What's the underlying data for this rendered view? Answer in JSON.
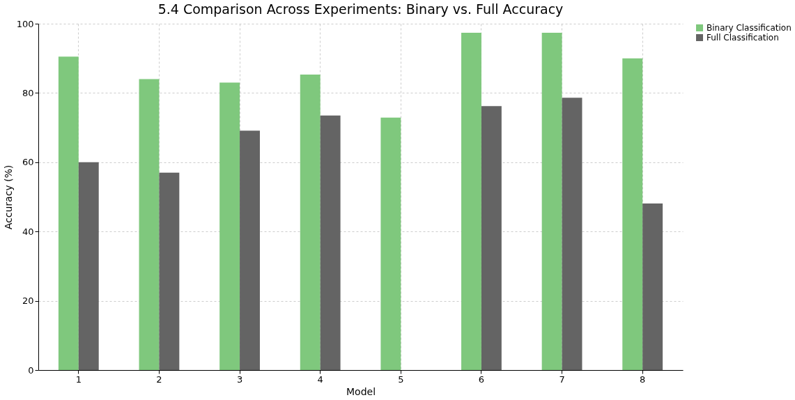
{
  "chart_data": {
    "type": "bar",
    "title": "5.4 Comparison Across Experiments: Binary vs. Full Accuracy",
    "xlabel": "Model",
    "ylabel": "Accuracy (%)",
    "categories": [
      "1",
      "2",
      "3",
      "4",
      "5",
      "6",
      "7",
      "8"
    ],
    "series": [
      {
        "name": "Binary Classification",
        "color": "#7fc87d",
        "values": [
          90.5,
          84.0,
          83.0,
          85.3,
          72.9,
          97.4,
          97.4,
          90
        ]
      },
      {
        "name": "Full Classification",
        "color": "#646464",
        "values": [
          60.0,
          57.0,
          69.1,
          73.5,
          null,
          76.2,
          78.6,
          48.1
        ]
      }
    ],
    "ylim": [
      0,
      100
    ],
    "yticks": [
      0,
      20,
      40,
      60,
      80,
      100
    ],
    "grid": true,
    "legend": "right"
  }
}
